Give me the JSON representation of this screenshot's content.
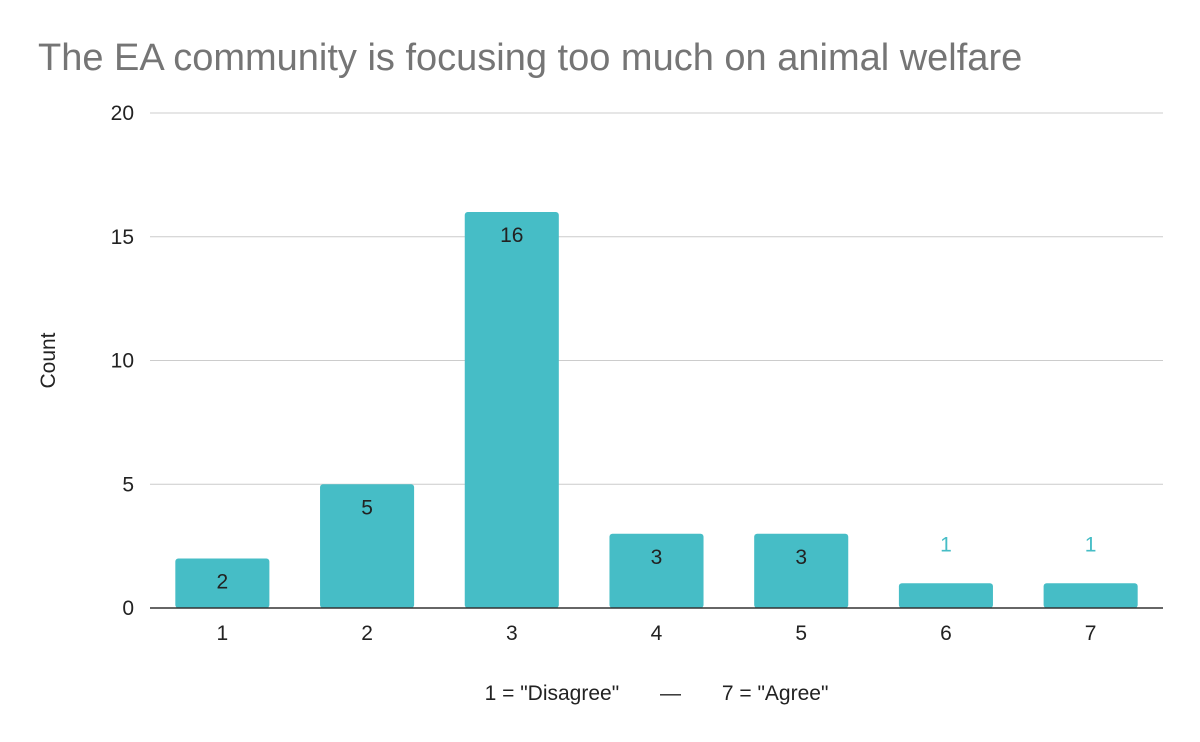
{
  "chart_data": {
    "type": "bar",
    "title": "The EA community is focusing too much on animal welfare",
    "xlabel": "1 = \"Disagree\"       —       7 = \"Agree\"",
    "ylabel": "Count",
    "categories": [
      "1",
      "2",
      "3",
      "4",
      "5",
      "6",
      "7"
    ],
    "values": [
      2,
      5,
      16,
      3,
      3,
      1,
      1
    ],
    "ylim": [
      0,
      20
    ],
    "yticks": [
      0,
      5,
      10,
      15,
      20
    ],
    "grid": true,
    "legend": "none",
    "bar_color": "#46bdc6",
    "label_inside_color": "#222222",
    "label_outside_color": "#46bdc6"
  }
}
